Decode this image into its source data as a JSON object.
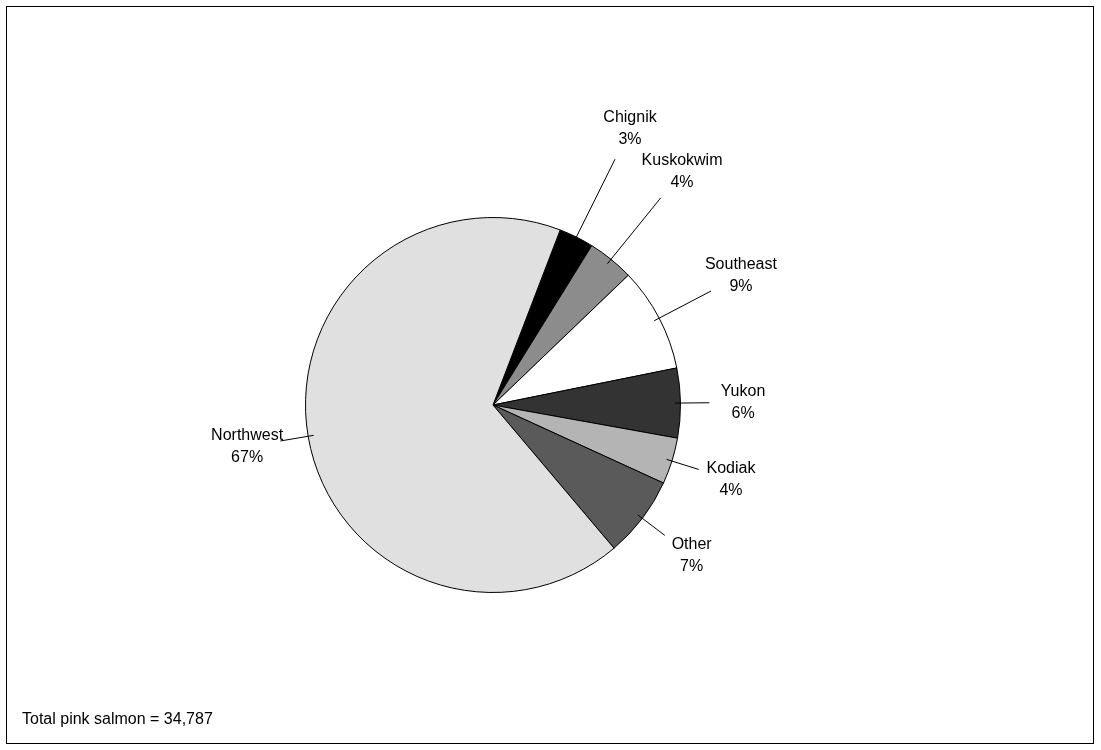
{
  "chart_data": {
    "type": "pie",
    "categories": [
      "Chignik",
      "Kuskokwim",
      "Southeast",
      "Yukon",
      "Kodiak",
      "Other",
      "Northwest"
    ],
    "values": [
      3,
      4,
      9,
      6,
      4,
      7,
      67
    ],
    "colors": [
      "#000000",
      "#8c8c8c",
      "#ffffff",
      "#333333",
      "#b4b4b4",
      "#5a5a5a",
      "#e0e0e0"
    ],
    "value_labels": [
      "3%",
      "4%",
      "9%",
      "6%",
      "4%",
      "7%",
      "67%"
    ],
    "legend": false,
    "annotations": [
      "Total pink salmon = 34,787"
    ]
  }
}
